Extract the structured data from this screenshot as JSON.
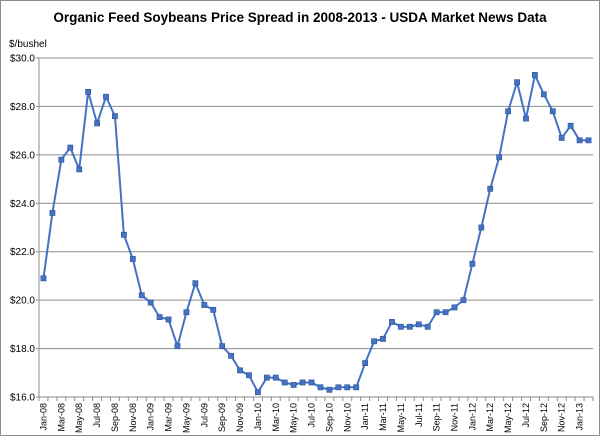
{
  "chart_data": {
    "type": "line",
    "title": "Organic Feed Soybeans Price Spread in 2008-2013 - USDA Market News Data",
    "ylabel": "$/bushel",
    "xlabel": "",
    "ylim": [
      16.0,
      30.0
    ],
    "yticks": [
      "$16.0",
      "$18.0",
      "$20.0",
      "$22.0",
      "$24.0",
      "$26.0",
      "$28.0",
      "$30.0"
    ],
    "ytick_values": [
      16,
      18,
      20,
      22,
      24,
      26,
      28,
      30
    ],
    "grid": "horizontal",
    "legend": "none",
    "series_color": "#4472c4",
    "x_tick_labels": [
      "Jan-08",
      "Mar-08",
      "May-08",
      "Jul-08",
      "Sep-08",
      "Nov-08",
      "Jan-09",
      "Mar-09",
      "May-09",
      "Jul-09",
      "Sep-09",
      "Nov-09",
      "Jan-10",
      "Mar-10",
      "May-10",
      "Jul-10",
      "Sep-10",
      "Nov-10",
      "Jan-11",
      "Mar-11",
      "May-11",
      "Jul-11",
      "Sep-11",
      "Nov-11",
      "Jan-12",
      "Mar-12",
      "May-12",
      "Jul-12",
      "Sep-12",
      "Nov-12",
      "Jan-13"
    ],
    "series": [
      {
        "name": "Price Spread",
        "values": [
          20.9,
          23.6,
          25.8,
          26.3,
          25.4,
          28.6,
          27.3,
          28.4,
          27.6,
          22.7,
          21.7,
          20.2,
          19.9,
          19.3,
          19.2,
          18.1,
          19.5,
          20.7,
          19.8,
          19.6,
          18.1,
          17.7,
          17.1,
          16.9,
          16.2,
          16.8,
          16.8,
          16.6,
          16.5,
          16.6,
          16.6,
          16.4,
          16.3,
          16.4,
          16.4,
          16.4,
          17.4,
          18.3,
          18.4,
          19.1,
          18.9,
          18.9,
          19.0,
          18.9,
          19.5,
          19.5,
          19.7,
          20.0,
          21.5,
          23.0,
          24.6,
          25.9,
          27.8,
          29.0,
          27.5,
          29.3,
          28.5,
          27.8,
          26.7,
          27.2,
          26.6,
          26.6
        ]
      }
    ]
  }
}
